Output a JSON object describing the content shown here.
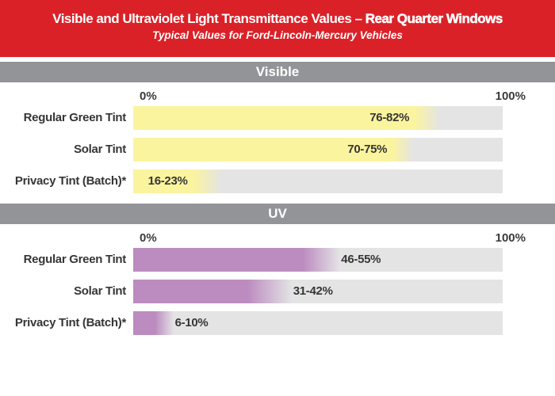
{
  "header": {
    "title_regular": "Visible and Ultraviolet Light Transmittance Values – ",
    "title_bold": "Rear Quarter Windows",
    "subtitle": "Typical Values for Ford-Lincoln-Mercury Vehicles"
  },
  "colors": {
    "banner_red": "#DB2128",
    "section_gray": "#929497",
    "visible_fill": "#FBF49E",
    "uv_fill": "#BC8CC0",
    "track_gray": "#E4E4E5",
    "text_dark": "#363636"
  },
  "chart_data": [
    {
      "type": "bar",
      "section": "Visible",
      "unit": "%",
      "axis": {
        "min": 0,
        "max": 100,
        "min_label": "0%",
        "max_label": "100%"
      },
      "fill_color": "#FBF49E",
      "value_placement": "inside-end",
      "rows": [
        {
          "label": "Regular Green Tint",
          "low": 76,
          "high": 82,
          "value_label": "76-82%"
        },
        {
          "label": "Solar Tint",
          "low": 70,
          "high": 75,
          "value_label": "70-75%"
        },
        {
          "label": "Privacy Tint (Batch)*",
          "low": 16,
          "high": 23,
          "value_label": "16-23%"
        }
      ]
    },
    {
      "type": "bar",
      "section": "UV",
      "unit": "%",
      "axis": {
        "min": 0,
        "max": 100,
        "min_label": "0%",
        "max_label": "100%"
      },
      "fill_color": "#BC8CC0",
      "value_placement": "after-end",
      "rows": [
        {
          "label": "Regular Green Tint",
          "low": 46,
          "high": 55,
          "value_label": "46-55%"
        },
        {
          "label": "Solar Tint",
          "low": 31,
          "high": 42,
          "value_label": "31-42%"
        },
        {
          "label": "Privacy Tint (Batch)*",
          "low": 6,
          "high": 10,
          "value_label": "6-10%"
        }
      ]
    }
  ]
}
